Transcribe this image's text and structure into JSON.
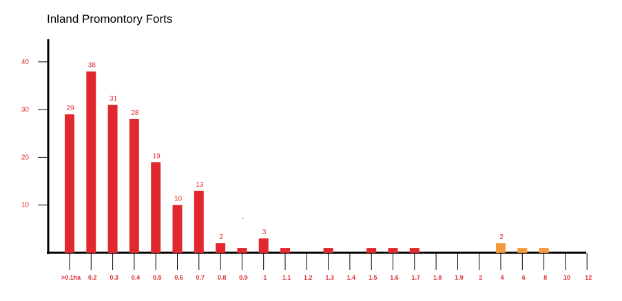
{
  "chart_data": {
    "type": "bar",
    "title": "Inland Promontory Forts",
    "xlabel": "",
    "ylabel": "",
    "ylim": [
      0,
      45
    ],
    "yticks": [
      "10",
      "20",
      "30",
      "40"
    ],
    "categories": [
      ">0.1ha",
      "0.2",
      "0.3",
      "0.4",
      "0.5",
      "0.6",
      "0.7",
      "0.8",
      "0.9",
      "1",
      "1.1",
      "1.2",
      "1.3",
      "1.4",
      "1.5",
      "1.6",
      "1.7",
      "1.8",
      "1.9",
      "2",
      "4",
      "6",
      "8",
      "10",
      "12"
    ],
    "values": [
      29,
      38,
      31,
      28,
      19,
      10,
      13,
      2,
      1,
      3,
      1,
      0,
      1,
      0,
      1,
      1,
      1,
      0,
      0,
      0,
      2,
      1,
      1,
      0,
      0
    ],
    "data_labels": [
      "29",
      "38",
      "31",
      "28",
      "19",
      "10",
      "13",
      "2",
      "-",
      "3",
      "",
      "",
      "",
      "",
      "",
      "",
      "",
      "",
      "",
      "",
      "2",
      "",
      "",
      "",
      ""
    ],
    "bar_colors": [
      "#e0282e",
      "#e0282e",
      "#e0282e",
      "#e0282e",
      "#e0282e",
      "#e0282e",
      "#e0282e",
      "#e0282e",
      "#e0282e",
      "#e0282e",
      "#e0282e",
      "#e0282e",
      "#e0282e",
      "#e0282e",
      "#e0282e",
      "#e0282e",
      "#e0282e",
      "#e0282e",
      "#e0282e",
      "#e0282e",
      "#f59a3c",
      "#f59a3c",
      "#f59a3c",
      "#f59a3c",
      "#f59a3c"
    ],
    "tick_label_colors": [
      "#e0282e",
      "#e0282e",
      "#e0282e",
      "#e0282e",
      "#e0282e",
      "#e0282e",
      "#e0282e",
      "#e0282e",
      "#e0282e",
      "#e0282e",
      "#e0282e",
      "#e0282e",
      "#e0282e",
      "#e0282e",
      "#e0282e",
      "#e0282e",
      "#e0282e",
      "#e0282e",
      "#e0282e",
      "#000000",
      "#000000",
      "#000000",
      "#000000",
      "#000000",
      "#000000"
    ],
    "data_label_colors": [
      "#e0282e",
      "#e0282e",
      "#e0282e",
      "#e0282e",
      "#e0282e",
      "#e0282e",
      "#e0282e",
      "#e0282e",
      "#e0282e",
      "#e0282e",
      "#e0282e",
      "#e0282e",
      "#e0282e",
      "#e0282e",
      "#e0282e",
      "#e0282e",
      "#e0282e",
      "#e0282e",
      "#e0282e",
      "#e0282e",
      "#000000",
      "#000000",
      "#000000",
      "#000000",
      "#000000"
    ],
    "grid": false,
    "legend": "none"
  }
}
